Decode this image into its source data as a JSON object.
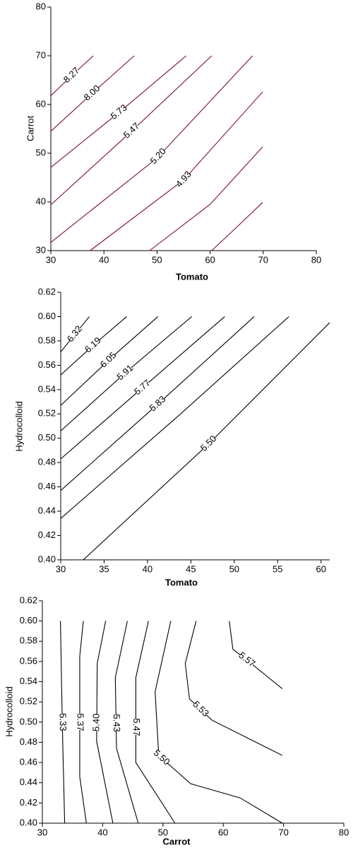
{
  "chart_data": [
    {
      "type": "contour",
      "x_label": "Tomato",
      "y_label": "Carrot",
      "color": "#7a1035",
      "xlim": [
        30,
        80
      ],
      "ylim": [
        30,
        80
      ],
      "xticks": [
        30,
        40,
        50,
        60,
        70,
        80
      ],
      "yticks": [
        30,
        40,
        50,
        60,
        70,
        80
      ],
      "lines": [
        {
          "label": "8.27",
          "x": [
            30,
            34,
            38
          ],
          "y": [
            61.8,
            66,
            70
          ]
        },
        {
          "label": "8.00",
          "x": [
            30,
            38,
            45.7
          ],
          "y": [
            54.5,
            62.5,
            70
          ]
        },
        {
          "label": "5.73",
          "x": [
            30,
            43,
            55.5
          ],
          "y": [
            47.1,
            58.5,
            70
          ]
        },
        {
          "label": "5.47",
          "x": [
            30,
            45,
            60.3
          ],
          "y": [
            39.4,
            54.3,
            70
          ]
        },
        {
          "label": "5.20",
          "x": [
            30,
            50,
            68
          ],
          "y": [
            31.7,
            49,
            70
          ]
        },
        {
          "label": "4.93",
          "x": [
            37.4,
            55,
            69.9
          ],
          "y": [
            30,
            44.5,
            62.6
          ]
        },
        {
          "x": [
            48.6,
            60,
            69.9
          ],
          "y": [
            30,
            39.5,
            51.3
          ]
        },
        {
          "x": [
            60.3,
            65,
            69.9
          ],
          "y": [
            30,
            34.8,
            39.9
          ]
        }
      ]
    },
    {
      "type": "contour",
      "x_label": "Tomato",
      "y_label": "Hydrocolloid",
      "color": "#000000",
      "xlim": [
        30,
        61
      ],
      "ylim": [
        0.4,
        0.62
      ],
      "xticks": [
        30,
        35,
        40,
        45,
        50,
        55,
        60
      ],
      "yticks": [
        {
          "value": 0.4,
          "label": "0.40"
        },
        0.42,
        0.44,
        0.46,
        0.48,
        {
          "value": 0.5,
          "label": "0.50"
        },
        0.52,
        0.54,
        0.56,
        0.58,
        {
          "value": 0.6,
          "label": "0.60"
        },
        0.62
      ],
      "lines": [
        {
          "label": "6.32",
          "x": [
            30,
            31.7,
            33.3
          ],
          "y": [
            0.571,
            0.586,
            0.6
          ]
        },
        {
          "label": "6.19",
          "x": [
            30,
            34,
            37.6
          ],
          "y": [
            0.552,
            0.578,
            0.6
          ]
        },
        {
          "label": "6.05",
          "x": [
            30,
            35.8,
            41.2
          ],
          "y": [
            0.527,
            0.566,
            0.6
          ]
        },
        {
          "label": "5.91",
          "x": [
            30,
            37.8,
            45.1
          ],
          "y": [
            0.506,
            0.556,
            0.6
          ]
        },
        {
          "label": "5.77",
          "x": [
            30,
            40,
            48.9
          ],
          "y": [
            0.483,
            0.545,
            0.6
          ]
        },
        {
          "label": "5.83",
          "x": [
            30,
            41.5,
            52.3
          ],
          "y": [
            0.457,
            0.53,
            0.6
          ]
        },
        {
          "x": [
            30,
            43.5,
            56.3
          ],
          "y": [
            0.434,
            0.518,
            0.6
          ]
        },
        {
          "label": "5.50",
          "x": [
            32.6,
            47,
            61
          ],
          "y": [
            0.4,
            0.495,
            0.595
          ]
        }
      ]
    },
    {
      "type": "contour",
      "x_label": "Carrot",
      "y_label": "Hydrocolloid",
      "color": "#000000",
      "xlim": [
        30,
        80
      ],
      "ylim": [
        0.4,
        0.62
      ],
      "xticks": [
        30,
        40,
        50,
        60,
        70,
        80
      ],
      "yticks": [
        {
          "value": 0.4,
          "label": "0.40"
        },
        0.42,
        0.44,
        0.46,
        0.48,
        {
          "value": 0.5,
          "label": "0.50"
        },
        0.52,
        0.54,
        0.56,
        0.58,
        {
          "value": 0.6,
          "label": "0.60"
        },
        0.62
      ],
      "lines": [
        {
          "label": "5.33",
          "x": [
            33,
            33.3,
            33.7
          ],
          "y": [
            0.6,
            0.5,
            0.4
          ]
        },
        {
          "label": "5.37",
          "x": [
            36.8,
            36.2,
            36.2,
            37.3
          ],
          "y": [
            0.6,
            0.565,
            0.446,
            0.4
          ]
        },
        {
          "label": "5.40",
          "x": [
            40.5,
            39.1,
            39,
            41.7
          ],
          "y": [
            0.6,
            0.558,
            0.481,
            0.4
          ]
        },
        {
          "label": "5.43",
          "x": [
            44.1,
            42.1,
            42.3,
            45.9
          ],
          "y": [
            0.6,
            0.544,
            0.474,
            0.4
          ]
        },
        {
          "label": "5.47",
          "x": [
            47.6,
            45.5,
            45.5,
            52
          ],
          "y": [
            0.6,
            0.544,
            0.46,
            0.4
          ]
        },
        {
          "label": "5.50",
          "x": [
            51.3,
            48.7,
            49.3,
            54.6,
            62.8,
            69.8
          ],
          "y": [
            0.6,
            0.53,
            0.467,
            0.439,
            0.425,
            0.4
          ]
        },
        {
          "label": "5.53",
          "x": [
            55.5,
            53.7,
            54.4,
            58.1,
            69.8
          ],
          "y": [
            0.6,
            0.558,
            0.523,
            0.502,
            0.467
          ]
        },
        {
          "label": "5.57",
          "x": [
            61,
            61.6,
            64,
            69.8
          ],
          "y": [
            0.6,
            0.572,
            0.561,
            0.533
          ]
        }
      ]
    }
  ]
}
